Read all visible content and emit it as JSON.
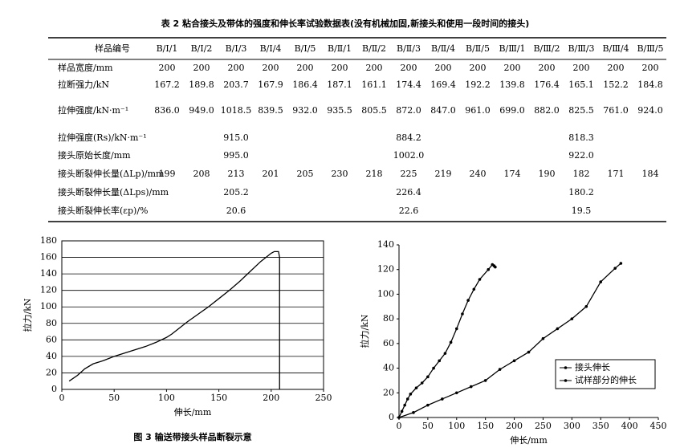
{
  "table": {
    "caption": "表 2  粘合接头及带体的强度和伸长率试验数据表(没有机械加固,新接头和使用一段时间的接头)",
    "header": [
      "样品编号",
      "B/I/1",
      "B/I/2",
      "B/I/3",
      "B/I/4",
      "B/I/5",
      "B/Ⅱ/1",
      "B/Ⅱ/2",
      "B/Ⅱ/3",
      "B/Ⅱ/4",
      "B/Ⅱ/5",
      "B/Ⅲ/1",
      "B/Ⅲ/2",
      "B/Ⅲ/3",
      "B/Ⅲ/4",
      "B/Ⅲ/5"
    ],
    "rows": [
      [
        "样品宽度/mm",
        "200",
        "200",
        "200",
        "200",
        "200",
        "200",
        "200",
        "200",
        "200",
        "200",
        "200",
        "200",
        "200",
        "200",
        "200"
      ],
      [
        "拉断强力/kN",
        "167.2",
        "189.8",
        "203.7",
        "167.9",
        "186.4",
        "187.1",
        "161.1",
        "174.4",
        "169.4",
        "192.2",
        "139.8",
        "176.4",
        "165.1",
        "152.2",
        "184.8"
      ],
      [
        "拉伸强度/kN·m⁻¹",
        "836.0",
        "949.0",
        "1018.5",
        "839.5",
        "932.0",
        "935.5",
        "805.5",
        "872.0",
        "847.0",
        "961.0",
        "699.0",
        "882.0",
        "825.5",
        "761.0",
        "924.0"
      ],
      [
        "拉伸强度(Rs)/kN·m⁻¹",
        null,
        null,
        "915.0",
        null,
        null,
        null,
        null,
        "884.2",
        null,
        null,
        null,
        null,
        "818.3",
        null,
        null
      ],
      [
        "接头原始长度/mm",
        null,
        null,
        "995.0",
        null,
        null,
        null,
        null,
        "1002.0",
        null,
        null,
        null,
        null,
        "922.0",
        null,
        null
      ],
      [
        "接头断裂伸长量(ΔLp)/mm",
        "199",
        "208",
        "213",
        "201",
        "205",
        "230",
        "218",
        "225",
        "219",
        "240",
        "174",
        "190",
        "182",
        "171",
        "184"
      ],
      [
        "接头断裂伸长量(ΔLps)/mm",
        null,
        null,
        "205.2",
        null,
        null,
        null,
        null,
        "226.4",
        null,
        null,
        null,
        null,
        "180.2",
        null,
        null
      ],
      [
        "接头断裂伸长率(εp)/%",
        null,
        null,
        "20.6",
        null,
        null,
        null,
        null,
        "22.6",
        null,
        null,
        null,
        null,
        "19.5",
        null,
        null
      ]
    ]
  },
  "chart_data": [
    {
      "type": "line",
      "caption": "图 3  输送带接头样品断裂示意",
      "xlabel": "伸长/mm",
      "ylabel": "拉力/kN",
      "xlim": [
        0,
        250
      ],
      "xticks": [
        0,
        50,
        100,
        150,
        200,
        250
      ],
      "ylim": [
        0,
        180
      ],
      "yticks": [
        0,
        20,
        40,
        60,
        80,
        100,
        120,
        140,
        160,
        180
      ],
      "grid": true,
      "markers": false,
      "series": [
        {
          "color": "#000000",
          "x": [
            7,
            15,
            22,
            30,
            40,
            50,
            60,
            70,
            80,
            90,
            100,
            105,
            110,
            120,
            130,
            140,
            150,
            160,
            170,
            180,
            190,
            200,
            203,
            207,
            208,
            208
          ],
          "values": [
            10,
            17,
            25,
            31,
            35,
            40,
            44,
            48,
            52,
            57,
            63,
            67,
            72,
            82,
            91,
            100,
            110,
            120,
            131,
            143,
            155,
            165,
            167,
            167,
            160,
            0
          ]
        }
      ]
    },
    {
      "type": "line",
      "xlabel": "伸长/mm",
      "ylabel": "拉力/kN",
      "xlim": [
        0,
        450
      ],
      "xticks": [
        0,
        50,
        100,
        150,
        200,
        250,
        300,
        350,
        400,
        450
      ],
      "ylim": [
        0,
        140
      ],
      "yticks": [
        0,
        20,
        40,
        60,
        80,
        100,
        120,
        140
      ],
      "grid": false,
      "markers": true,
      "legend": "lower right",
      "series": [
        {
          "name": "接头伸长",
          "color": "#000000",
          "x": [
            0,
            5,
            10,
            15,
            20,
            30,
            40,
            50,
            60,
            70,
            80,
            90,
            100,
            110,
            120,
            130,
            140,
            155,
            162,
            165,
            167
          ],
          "values": [
            0,
            5,
            10,
            15,
            19,
            24,
            28,
            33,
            40,
            46,
            52,
            61,
            72,
            84,
            95,
            104,
            112,
            120,
            124,
            123,
            122
          ]
        },
        {
          "name": "试样部分的伸长",
          "color": "#000000",
          "x": [
            0,
            25,
            50,
            75,
            100,
            125,
            150,
            175,
            200,
            225,
            250,
            275,
            300,
            325,
            350,
            375,
            385
          ],
          "values": [
            0,
            4,
            10,
            15,
            20,
            25,
            30,
            39,
            46,
            53,
            64,
            72,
            80,
            90,
            110,
            121,
            125
          ]
        }
      ]
    }
  ]
}
